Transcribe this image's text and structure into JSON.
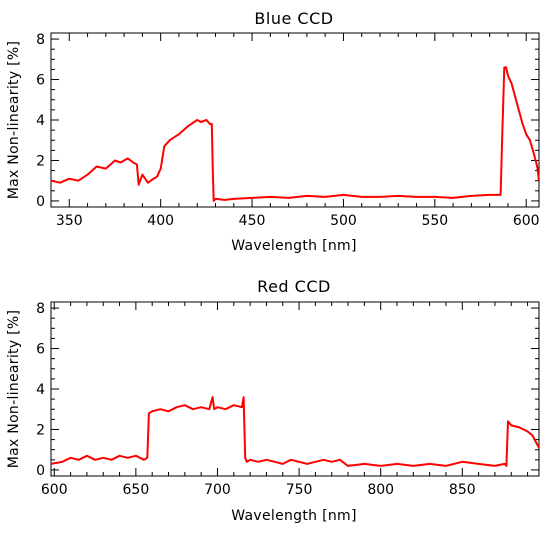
{
  "chart_data": [
    {
      "type": "line",
      "title": "Blue CCD",
      "xlabel": "Wavelength [nm]",
      "ylabel": "Max Non-linearity [%]",
      "xlim": [
        340,
        607
      ],
      "ylim": [
        -0.3,
        8.3
      ],
      "xticks": [
        350,
        400,
        450,
        500,
        550,
        600
      ],
      "yticks": [
        0,
        2,
        4,
        6,
        8
      ],
      "grid": false,
      "line_color": "#ff0000",
      "series": [
        {
          "x": [
            340,
            345,
            350,
            355,
            360,
            365,
            370,
            375,
            378,
            382,
            385,
            387,
            388,
            390,
            393,
            396,
            398,
            400,
            402,
            405,
            410,
            415,
            420,
            422,
            425,
            427,
            428,
            428.5,
            429,
            430,
            435,
            440,
            450,
            460,
            470,
            480,
            490,
            500,
            510,
            520,
            530,
            540,
            550,
            560,
            570,
            580,
            586,
            587,
            588,
            589,
            590,
            592,
            595,
            598,
            600,
            602,
            604,
            606,
            607
          ],
          "y": [
            1.0,
            0.9,
            1.1,
            1.0,
            1.3,
            1.7,
            1.6,
            2.0,
            1.9,
            2.1,
            1.9,
            1.8,
            0.8,
            1.3,
            0.9,
            1.1,
            1.2,
            1.6,
            2.7,
            3.0,
            3.3,
            3.7,
            4.0,
            3.9,
            4.0,
            3.8,
            3.8,
            1.5,
            0.0,
            0.1,
            0.05,
            0.1,
            0.15,
            0.2,
            0.15,
            0.25,
            0.2,
            0.3,
            0.2,
            0.2,
            0.25,
            0.2,
            0.2,
            0.15,
            0.25,
            0.3,
            0.3,
            3.5,
            6.6,
            6.6,
            6.2,
            5.8,
            4.8,
            3.8,
            3.3,
            3.0,
            2.4,
            1.7,
            1.0
          ]
        }
      ]
    },
    {
      "type": "line",
      "title": "Red CCD",
      "xlabel": "Wavelength [nm]",
      "ylabel": "Max Non-linearity [%]",
      "xlim": [
        598,
        897
      ],
      "ylim": [
        -0.3,
        8.3
      ],
      "xticks": [
        600,
        650,
        700,
        750,
        800,
        850
      ],
      "yticks": [
        0,
        2,
        4,
        6,
        8
      ],
      "grid": false,
      "line_color": "#ff0000",
      "series": [
        {
          "x": [
            598,
            605,
            610,
            615,
            620,
            625,
            630,
            635,
            640,
            645,
            650,
            655,
            657,
            658,
            660,
            665,
            670,
            675,
            680,
            685,
            690,
            695,
            697,
            698,
            700,
            705,
            710,
            715,
            716,
            717,
            718,
            720,
            725,
            730,
            735,
            740,
            745,
            750,
            755,
            760,
            765,
            770,
            775,
            780,
            790,
            800,
            810,
            820,
            830,
            840,
            850,
            860,
            870,
            876,
            877,
            878,
            880,
            885,
            890,
            893,
            895,
            897
          ],
          "y": [
            0.3,
            0.4,
            0.6,
            0.5,
            0.7,
            0.5,
            0.6,
            0.5,
            0.7,
            0.6,
            0.7,
            0.5,
            0.6,
            2.8,
            2.9,
            3.0,
            2.9,
            3.1,
            3.2,
            3.0,
            3.1,
            3.0,
            3.6,
            3.0,
            3.1,
            3.0,
            3.2,
            3.1,
            3.6,
            0.6,
            0.4,
            0.5,
            0.4,
            0.5,
            0.4,
            0.3,
            0.5,
            0.4,
            0.3,
            0.4,
            0.5,
            0.4,
            0.5,
            0.2,
            0.3,
            0.2,
            0.3,
            0.2,
            0.3,
            0.2,
            0.4,
            0.3,
            0.2,
            0.3,
            0.2,
            2.4,
            2.2,
            2.1,
            1.9,
            1.7,
            1.4,
            1.1
          ]
        }
      ]
    }
  ]
}
